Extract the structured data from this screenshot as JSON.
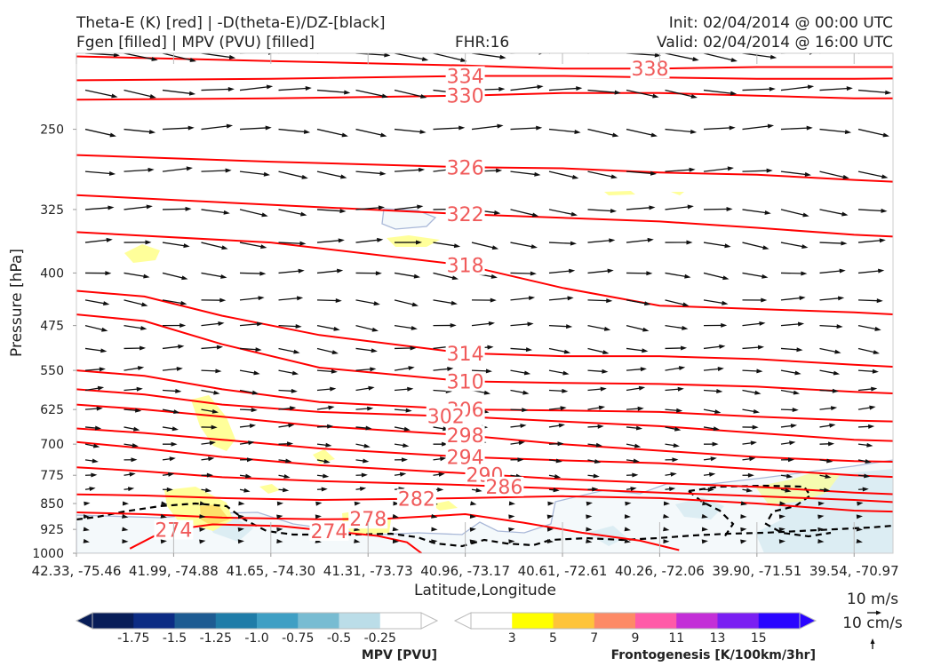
{
  "header": {
    "left_line1": "Theta-E (K) [red] | -D(theta-E)/DZ-[black]",
    "left_line2": "Fgen [filled] | MPV (PVU) [filled]",
    "center": "FHR:16",
    "right_line1": "Init: 02/04/2014 @ 00:00 UTC",
    "right_line2": "Valid: 02/04/2014 @ 16:00 UTC"
  },
  "colors": {
    "theta_e": "#ff0000",
    "theta_e_label": "#f05a5a",
    "wind": "#111111",
    "dtheta_dz": "#000000",
    "axes": "#cccccc"
  },
  "chart_data": {
    "type": "cross-section",
    "xlabel": "Latitude,Longitude",
    "ylabel": "Pressure [hPa]",
    "y_scale": "log-pressure",
    "ylim": [
      1000,
      195
    ],
    "y_ticks": [
      250,
      325,
      400,
      475,
      550,
      625,
      700,
      775,
      850,
      925,
      1000
    ],
    "x_ticks": [
      "42.33, -75.46",
      "41.99, -74.88",
      "41.65, -74.30",
      "41.31, -73.73",
      "40.96, -73.17",
      "40.61, -72.61",
      "40.26, -72.06",
      "39.90, -71.51",
      "39.54, -70.97"
    ],
    "theta_e_contours": [
      {
        "label": "338",
        "x": [
          0,
          2,
          4,
          5,
          6,
          7,
          8,
          9.4
        ],
        "p": [
          197,
          200,
          203,
          205,
          205,
          204,
          204,
          204
        ]
      },
      {
        "label": "334",
        "x": [
          0,
          2,
          4,
          5,
          6,
          7,
          8,
          9.4
        ],
        "p": [
          213,
          212,
          210,
          210,
          211,
          212,
          212,
          211
        ]
      },
      {
        "label": "330",
        "x": [
          0,
          2,
          4,
          5,
          6,
          7,
          8,
          9.4
        ],
        "p": [
          227,
          226,
          224,
          222,
          222,
          224,
          226,
          226
        ]
      },
      {
        "label": "326",
        "x": [
          0,
          2,
          4,
          5,
          6,
          7,
          8,
          9.4
        ],
        "p": [
          272,
          278,
          283,
          284,
          288,
          290,
          295,
          301
        ]
      },
      {
        "label": "322",
        "x": [
          0,
          2,
          4,
          5,
          6,
          7,
          8,
          9.4
        ],
        "p": [
          310,
          320,
          330,
          334,
          338,
          345,
          353,
          360
        ]
      },
      {
        "label": "318",
        "x": [
          0,
          2,
          4,
          5,
          6,
          7,
          8,
          9.4
        ],
        "p": [
          350,
          362,
          390,
          420,
          445,
          450,
          455,
          465
        ]
      },
      {
        "label": "314",
        "x": [
          0,
          0.7,
          1.5,
          2.5,
          4,
          5,
          6,
          7,
          8,
          9.4
        ],
        "p": [
          424,
          432,
          460,
          490,
          520,
          525,
          525,
          530,
          540,
          552
        ]
      },
      {
        "label": "310",
        "x": [
          0,
          0.7,
          1.5,
          2.5,
          4,
          5,
          6,
          7,
          8,
          9.4
        ],
        "p": [
          458,
          468,
          505,
          545,
          570,
          573,
          575,
          580,
          590,
          600
        ]
      },
      {
        "label": "306",
        "x": [
          0,
          0.7,
          1.5,
          2.5,
          4,
          5,
          6,
          7,
          8,
          9.4
        ],
        "p": [
          550,
          560,
          585,
          610,
          625,
          627,
          630,
          640,
          648,
          655
        ]
      },
      {
        "label": "302",
        "x": [
          0,
          0.7,
          1.5,
          2.5,
          4,
          5,
          6,
          7,
          8,
          9.4
        ],
        "p": [
          585,
          595,
          615,
          630,
          640,
          650,
          660,
          675,
          690,
          700
        ]
      },
      {
        "label": "298",
        "x": [
          0,
          0.7,
          1.5,
          2.5,
          4,
          5,
          6,
          7,
          8,
          9.4
        ],
        "p": [
          615,
          625,
          640,
          660,
          680,
          700,
          715,
          730,
          740,
          745
        ]
      },
      {
        "label": "294",
        "x": [
          0,
          0.7,
          1.5,
          2.5,
          4,
          5,
          6,
          7,
          8,
          9.4
        ],
        "p": [
          665,
          675,
          690,
          710,
          730,
          738,
          745,
          760,
          775,
          790
        ]
      },
      {
        "label": "290",
        "x": [
          0,
          0.7,
          1.5,
          2.5,
          4,
          5,
          6,
          7,
          8,
          9.4
        ],
        "p": [
          695,
          710,
          730,
          750,
          770,
          785,
          795,
          805,
          820,
          835
        ]
      },
      {
        "label": "286",
        "x": [
          0,
          0.7,
          1.5,
          2.5,
          4,
          5,
          6,
          7,
          8,
          9.4
        ],
        "p": [
          755,
          765,
          780,
          790,
          800,
          810,
          820,
          830,
          840,
          860
        ]
      },
      {
        "label": "282",
        "x": [
          0,
          0.7,
          1.5,
          2.5,
          4,
          5,
          6,
          7,
          8,
          9.4
        ],
        "p": [
          825,
          828,
          835,
          840,
          835,
          830,
          835,
          850,
          870,
          880
        ]
      },
      {
        "label": "278",
        "x": [
          0,
          0.7,
          1.5,
          2.5,
          3.2,
          4,
          4.6,
          5.2,
          5.8,
          6.2
        ],
        "p": [
          875,
          880,
          890,
          895,
          893,
          880,
          905,
          935,
          960,
          990
        ]
      },
      {
        "label": "274",
        "x": [
          0.55,
          0.9,
          1.4,
          2.1,
          2.6,
          3.1,
          3.4,
          3.55
        ],
        "p": [
          985,
          930,
          910,
          915,
          930,
          945,
          965,
          1000
        ]
      }
    ],
    "theta_e_labels_shown": [
      "338",
      "334",
      "330",
      "326",
      "322",
      "318",
      "314",
      "310",
      "306",
      "302",
      "298",
      "294",
      "290",
      "286",
      "282",
      "278",
      "274",
      "274"
    ],
    "legend_mpv": {
      "title": "MPV [PVU]",
      "ticks": [
        "-1.75",
        "-1.5",
        "-1.25",
        "-1.0",
        "-0.75",
        "-0.5",
        "-0.25"
      ],
      "colors": [
        "#081d58",
        "#0c2c84",
        "#1d5b92",
        "#1f7ca8",
        "#3f9fc4",
        "#78bcd2",
        "#bbdde8",
        "#ffffff"
      ]
    },
    "legend_fgen": {
      "title": "Frontogenesis [K/100km/3hr]",
      "ticks": [
        "3",
        "5",
        "7",
        "9",
        "11",
        "13",
        "15"
      ],
      "colors": [
        "#ffffff",
        "#ffff00",
        "#fec43a",
        "#fd8a66",
        "#ff5aa8",
        "#c32fd7",
        "#7a1ff2",
        "#2a05ff"
      ]
    },
    "wind_scale": {
      "horizontal": "10 m/s",
      "vertical": "10 cm/s"
    }
  }
}
